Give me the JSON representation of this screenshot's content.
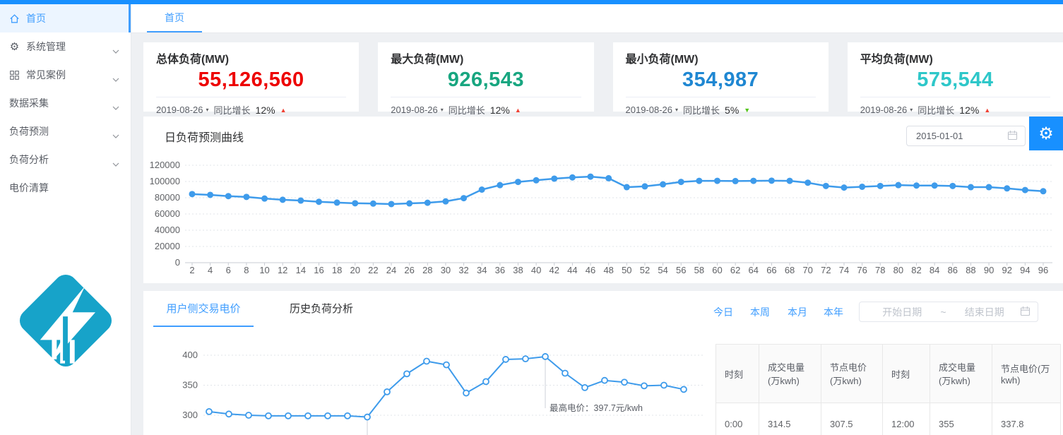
{
  "colors": {
    "primary": "#1890ff",
    "link": "#409eff",
    "chart_line": "#3e9beb",
    "trend_up_red": "#f04134",
    "trend_down_green": "#52c41a"
  },
  "icons": {
    "caret_down": "▾",
    "gear": "⚙"
  },
  "sidebar": {
    "items": [
      {
        "label": "首页",
        "icon": "home-icon",
        "active": true,
        "has_children": false
      },
      {
        "label": "系统管理",
        "icon": "gear-icon",
        "active": false,
        "has_children": true
      },
      {
        "label": "常见案例",
        "icon": "grid-icon",
        "active": false,
        "has_children": true
      },
      {
        "label": "数据采集",
        "icon": null,
        "active": false,
        "has_children": true
      },
      {
        "label": "负荷预测",
        "icon": null,
        "active": false,
        "has_children": true
      },
      {
        "label": "负荷分析",
        "icon": null,
        "active": false,
        "has_children": true
      },
      {
        "label": "电价清算",
        "icon": null,
        "active": false,
        "has_children": false
      }
    ]
  },
  "tabbar": {
    "tabs": [
      {
        "label": "首页",
        "active": true
      }
    ]
  },
  "stat_cards": [
    {
      "title": "总体负荷(MW)",
      "value": "55,126,560",
      "value_color": "#ed0000",
      "date": "2019-08-26",
      "growth_label": "同比增长",
      "growth_value": "12%",
      "trend": "up",
      "trend_icon": "▲",
      "trend_color": "#f04134"
    },
    {
      "title": "最大负荷(MW)",
      "value": "926,543",
      "value_color": "#18a680",
      "date": "2019-08-26",
      "growth_label": "同比增长",
      "growth_value": "12%",
      "trend": "up",
      "trend_icon": "▲",
      "trend_color": "#f04134"
    },
    {
      "title": "最小负荷(MW)",
      "value": "354,987",
      "value_color": "#1f87d2",
      "date": "2019-08-26",
      "growth_label": "同比增长",
      "growth_value": "5%",
      "trend": "down",
      "trend_icon": "▼",
      "trend_color": "#52c41a"
    },
    {
      "title": "平均负荷(MW)",
      "value": "575,544",
      "value_color": "#2ec7c9",
      "date": "2019-08-26",
      "growth_label": "同比增长",
      "growth_value": "12%",
      "trend": "up",
      "trend_icon": "▲",
      "trend_color": "#f04134"
    }
  ],
  "forecast_panel": {
    "title": "日负荷预测曲线",
    "date_value": "2015-01-01"
  },
  "bottom_panel": {
    "tabs": [
      {
        "label": "用户侧交易电价",
        "active": true
      },
      {
        "label": "历史负荷分析",
        "active": false
      }
    ],
    "quick_links": [
      "今日",
      "本周",
      "本月",
      "本年"
    ],
    "range_picker": {
      "start_placeholder": "开始日期",
      "separator": "~",
      "end_placeholder": "结束日期"
    },
    "table": {
      "headers": [
        "时刻",
        "成交电量(万kwh)",
        "节点电价(万kwh)",
        "时刻",
        "成交电量(万kwh)",
        "节点电价(万kwh)"
      ],
      "rows": [
        [
          "0:00",
          "314.5",
          "307.5",
          "12:00",
          "355",
          "337.8"
        ]
      ]
    }
  },
  "chart_data": [
    {
      "type": "line",
      "title": "日负荷预测曲线",
      "x": [
        2,
        4,
        6,
        8,
        10,
        12,
        14,
        16,
        18,
        20,
        22,
        24,
        26,
        28,
        30,
        32,
        34,
        36,
        38,
        40,
        42,
        44,
        46,
        48,
        50,
        52,
        54,
        56,
        58,
        60,
        62,
        64,
        66,
        68,
        70,
        72,
        74,
        76,
        78,
        80,
        82,
        84,
        86,
        88,
        90,
        92,
        94,
        96
      ],
      "values": [
        84500,
        83500,
        82000,
        81000,
        79000,
        77500,
        76500,
        75000,
        74000,
        73200,
        72800,
        72200,
        73000,
        73800,
        75500,
        79500,
        90000,
        95500,
        99500,
        101500,
        103500,
        105000,
        106000,
        104000,
        93000,
        94000,
        96500,
        99500,
        100800,
        100800,
        100500,
        100800,
        101000,
        100800,
        98500,
        94500,
        92500,
        93500,
        94500,
        95500,
        95000,
        95000,
        94500,
        93000,
        93000,
        91500,
        89500,
        88000
      ],
      "ylim": [
        0,
        120000
      ],
      "yticks": [
        0,
        20000,
        40000,
        60000,
        80000,
        100000,
        120000
      ],
      "line_color": "#3e9beb",
      "marker": "filled",
      "grid": "dotted",
      "legend": "none"
    },
    {
      "type": "line",
      "title": "用户侧交易电价",
      "values": [
        306,
        302,
        300,
        299,
        299,
        299,
        299,
        299,
        297,
        339,
        369,
        390,
        384,
        337,
        356,
        393,
        394,
        397.7,
        370,
        346,
        358,
        355,
        349,
        350,
        343
      ],
      "yticks": [
        300,
        350,
        400
      ],
      "line_color": "#3e9beb",
      "marker": "open",
      "grid": "dotted",
      "min_marker_index": 8,
      "annotation": {
        "label": "最高电价：397.7元/kwh",
        "point_index": 17,
        "value": "397.7"
      }
    }
  ]
}
